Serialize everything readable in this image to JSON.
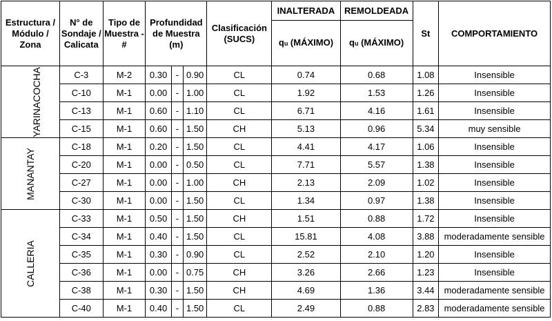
{
  "headers": {
    "zona": "Estructura / Módulo / Zona",
    "sondaje": "N° de Sondaje / Calicata",
    "tipo": "Tipo de Muestra - #",
    "profundidad": "Profundidad de Muestra (m)",
    "clasificacion": "Clasificación (SUCS)",
    "inalterada": "INALTERADA",
    "remoldeada": "REMOLDEADA",
    "qu_prefix": "q",
    "qu_sub": "u",
    "qu_suffix": " (MÁXIMO)",
    "st": "St",
    "comportamiento": "COMPORTAMIENTO"
  },
  "zones": [
    "YARINACOCHA",
    "MANANTAY",
    "CALLERIA"
  ],
  "rows": [
    {
      "sondaje": "C-3",
      "tipo": "M-2",
      "desde": "0.30",
      "sep": "-",
      "hasta": "0.90",
      "sucs": "CL",
      "inalterada": "0.74",
      "remoldeada": "0.68",
      "st": "1.08",
      "comportamiento": "Insensible"
    },
    {
      "sondaje": "C-10",
      "tipo": "M-1",
      "desde": "0.00",
      "sep": "-",
      "hasta": "1.00",
      "sucs": "CL",
      "inalterada": "1.92",
      "remoldeada": "1.53",
      "st": "1.26",
      "comportamiento": "Insensible"
    },
    {
      "sondaje": "C-13",
      "tipo": "M-1",
      "desde": "0.60",
      "sep": "-",
      "hasta": "1.10",
      "sucs": "CL",
      "inalterada": "6.71",
      "remoldeada": "4.16",
      "st": "1.61",
      "comportamiento": "Insensible"
    },
    {
      "sondaje": "C-15",
      "tipo": "M-1",
      "desde": "0.60",
      "sep": "-",
      "hasta": "1.50",
      "sucs": "CH",
      "inalterada": "5.13",
      "remoldeada": "0.96",
      "st": "5.34",
      "comportamiento": "muy sensible"
    },
    {
      "sondaje": "C-18",
      "tipo": "M-1",
      "desde": "0.20",
      "sep": "-",
      "hasta": "1.50",
      "sucs": "CL",
      "inalterada": "4.41",
      "remoldeada": "4.17",
      "st": "1.06",
      "comportamiento": "Insensible"
    },
    {
      "sondaje": "C-20",
      "tipo": "M-1",
      "desde": "0.00",
      "sep": "-",
      "hasta": "0.50",
      "sucs": "CL",
      "inalterada": "7.71",
      "remoldeada": "5.57",
      "st": "1.38",
      "comportamiento": "Insensible"
    },
    {
      "sondaje": "C-27",
      "tipo": "M-1",
      "desde": "0.00",
      "sep": "-",
      "hasta": "1.00",
      "sucs": "CH",
      "inalterada": "2.13",
      "remoldeada": "2.09",
      "st": "1.02",
      "comportamiento": "Insensible"
    },
    {
      "sondaje": "C-30",
      "tipo": "M-1",
      "desde": "0.00",
      "sep": "-",
      "hasta": "1.50",
      "sucs": "CL",
      "inalterada": "1.34",
      "remoldeada": "0.97",
      "st": "1.38",
      "comportamiento": "Insensible"
    },
    {
      "sondaje": "C-33",
      "tipo": "M-1",
      "desde": "0.50",
      "sep": "-",
      "hasta": "1.50",
      "sucs": "CH",
      "inalterada": "1.51",
      "remoldeada": "0.88",
      "st": "1.72",
      "comportamiento": "Insensible"
    },
    {
      "sondaje": "C-34",
      "tipo": "M-1",
      "desde": "0.40",
      "sep": "-",
      "hasta": "1.50",
      "sucs": "CL",
      "inalterada": "15.81",
      "remoldeada": "4.08",
      "st": "3.88",
      "comportamiento": "moderadamente sensible"
    },
    {
      "sondaje": "C-35",
      "tipo": "M-1",
      "desde": "0.30",
      "sep": "-",
      "hasta": "0.90",
      "sucs": "CL",
      "inalterada": "2.52",
      "remoldeada": "2.10",
      "st": "1.20",
      "comportamiento": "Insensible"
    },
    {
      "sondaje": "C-36",
      "tipo": "M-1",
      "desde": "0.00",
      "sep": "-",
      "hasta": "0.75",
      "sucs": "CH",
      "inalterada": "3.26",
      "remoldeada": "2.66",
      "st": "1.23",
      "comportamiento": "Insensible"
    },
    {
      "sondaje": "C-38",
      "tipo": "M-1",
      "desde": "0.30",
      "sep": "-",
      "hasta": "1.50",
      "sucs": "CH",
      "inalterada": "4.69",
      "remoldeada": "1.36",
      "st": "3.44",
      "comportamiento": "moderadamente sensible"
    },
    {
      "sondaje": "C-40",
      "tipo": "M-1",
      "desde": "0.40",
      "sep": "-",
      "hasta": "1.50",
      "sucs": "CL",
      "inalterada": "2.49",
      "remoldeada": "0.88",
      "st": "2.83",
      "comportamiento": "moderadamente sensible"
    }
  ]
}
